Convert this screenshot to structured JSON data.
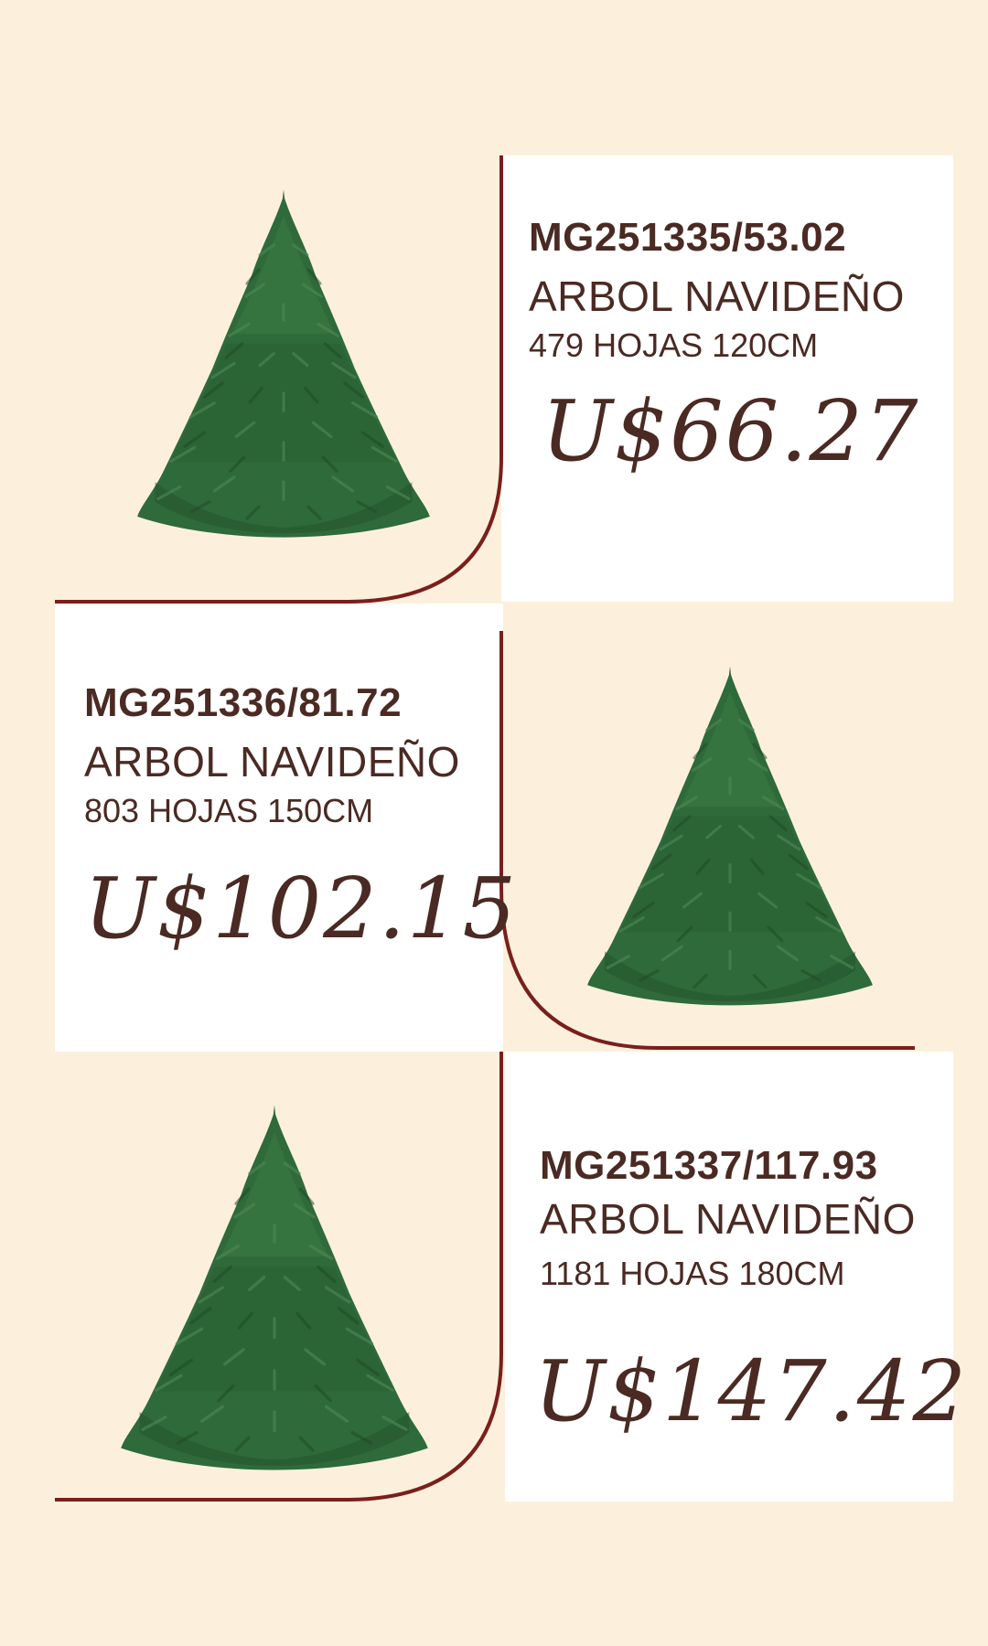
{
  "colors": {
    "background": "#fcf0dd",
    "card": "#ffffff",
    "accent_line": "#7a1f1c",
    "text": "#4a2a23",
    "tree_green": "#2f6a3a"
  },
  "products": [
    {
      "code": "MG251335/53.02",
      "name": "ARBOL NAVIDEÑO",
      "spec": "479 HOJAS 120CM",
      "price": "U$66.27",
      "image_icon": "christmas-tree-icon"
    },
    {
      "code": "MG251336/81.72",
      "name": "ARBOL NAVIDEÑO",
      "spec": "803 HOJAS 150CM",
      "price": "U$102.15",
      "image_icon": "christmas-tree-icon"
    },
    {
      "code": "MG251337/117.93",
      "name": "ARBOL NAVIDEÑO",
      "spec": "1181 HOJAS 180CM",
      "price": "U$147.42",
      "image_icon": "christmas-tree-icon"
    }
  ]
}
